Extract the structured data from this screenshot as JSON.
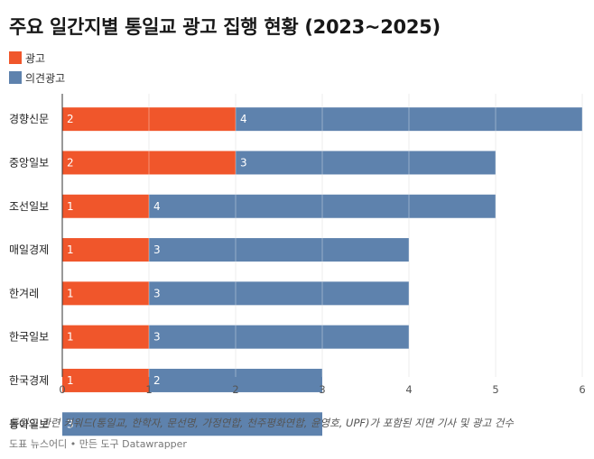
{
  "header": {
    "title": "주요 일간지별 통일교 광고 집행 현황 (2023~2025)"
  },
  "legend": [
    {
      "label": "광고",
      "color": "#f0562b"
    },
    {
      "label": "의견광고",
      "color": "#5e82ad"
    }
  ],
  "chart_data": {
    "type": "bar",
    "orientation": "horizontal",
    "stacked": true,
    "title": "주요 일간지별 통일교 광고 집행 현황 (2023~2025)",
    "categories": [
      "경향신문",
      "중앙일보",
      "조선일보",
      "매일경제",
      "한겨레",
      "한국일보",
      "한국경제",
      "동아일보"
    ],
    "series": [
      {
        "name": "광고",
        "color": "#f0562b",
        "values": [
          2,
          2,
          1,
          1,
          1,
          1,
          1,
          0
        ]
      },
      {
        "name": "의견광고",
        "color": "#5e82ad",
        "values": [
          4,
          3,
          4,
          3,
          3,
          3,
          2,
          3
        ]
      }
    ],
    "xlim": [
      0,
      6
    ],
    "xticks": [
      "0",
      "1",
      "2",
      "3",
      "4",
      "5",
      "6"
    ],
    "grid": true,
    "legend_position": "top-left"
  },
  "footer": {
    "note": "통일교 관련 키워드(통일교, 한학자, 문선명, 가정연합, 천주평화연합, 윤영호, UPF)가 포함된 지면 기사 및 광고 건수",
    "source": "도표 뉴스어디 • 만든 도구 Datawrapper"
  }
}
